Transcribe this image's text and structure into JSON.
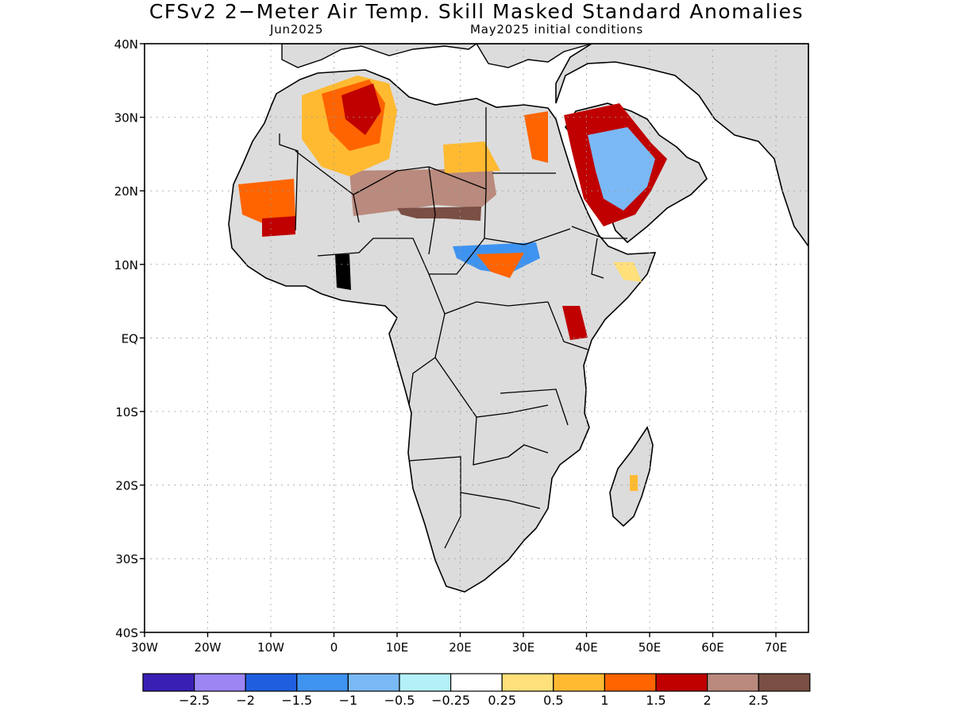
{
  "title": "CFSv2 2−Meter Air Temp. Skill Masked Standard Anomalies",
  "valid_month": "Jun2025",
  "initial_conditions": "May2025 initial conditions",
  "map": {
    "lon_ticks": [
      "30W",
      "20W",
      "10W",
      "0",
      "10E",
      "20E",
      "30E",
      "40E",
      "50E",
      "60E",
      "70E"
    ],
    "lat_ticks": [
      "40N",
      "30N",
      "20N",
      "10N",
      "EQ",
      "10S",
      "20S",
      "30S",
      "40S"
    ],
    "colors": {
      "land": "#dcdcdc",
      "border": "#000000",
      "grid": "#999999"
    }
  },
  "colorbar": {
    "colors": [
      "#3a1fb5",
      "#9b86f4",
      "#1f5fdf",
      "#3f93f0",
      "#7ab9f5",
      "#b3f0f8",
      "#ffffff",
      "#ffe07a",
      "#ffba32",
      "#ff6400",
      "#c00000",
      "#b98a7d",
      "#7a4f44"
    ],
    "labels": [
      "−2.5",
      "−2",
      "−1.5",
      "−1",
      "−0.5",
      "−0.25",
      "0.25",
      "0.5",
      "1",
      "1.5",
      "2",
      "2.5"
    ]
  },
  "anomalies": [
    {
      "name": "west-sahara-hot",
      "color": "#ff6400"
    },
    {
      "name": "algeria-very-hot",
      "color": "#c00000"
    },
    {
      "name": "algeria-extreme",
      "color": "#b98a7d"
    },
    {
      "name": "algeria-core",
      "color": "#7a4f44"
    },
    {
      "name": "sahel-warm",
      "color": "#ffba32"
    },
    {
      "name": "chad-hot",
      "color": "#ff6400"
    },
    {
      "name": "libya-very-hot",
      "color": "#c00000"
    },
    {
      "name": "arabia-warm",
      "color": "#ffba32"
    },
    {
      "name": "arabia-hot",
      "color": "#ff6400"
    },
    {
      "name": "egypt-very-hot",
      "color": "#c00000"
    },
    {
      "name": "sudan-cold",
      "color": "#7ab9f5"
    },
    {
      "name": "sudan-colder",
      "color": "#3f93f0"
    },
    {
      "name": "kenya-hot",
      "color": "#ff6400"
    },
    {
      "name": "madagascar-hot",
      "color": "#c00000"
    },
    {
      "name": "somalia-warm",
      "color": "#ffba32"
    },
    {
      "name": "nigeria-warm",
      "color": "#ffe07a"
    }
  ]
}
